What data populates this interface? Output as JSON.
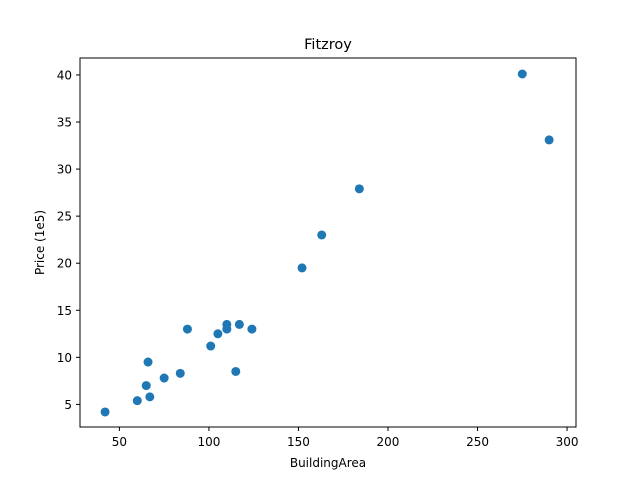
{
  "chart_data": {
    "type": "scatter",
    "title": "Fitzroy",
    "xlabel": "BuildingArea",
    "ylabel": "Price (1e5)",
    "xlim": [
      28,
      305
    ],
    "ylim": [
      2.6,
      41.8
    ],
    "xticks": [
      50,
      100,
      150,
      200,
      250,
      300
    ],
    "yticks": [
      5,
      10,
      15,
      20,
      25,
      30,
      35,
      40
    ],
    "grid": false,
    "marker_color": "#1f77b4",
    "points": [
      {
        "x": 42,
        "y": 4.2
      },
      {
        "x": 60,
        "y": 5.4
      },
      {
        "x": 65,
        "y": 7.0
      },
      {
        "x": 66,
        "y": 9.5
      },
      {
        "x": 67,
        "y": 5.8
      },
      {
        "x": 75,
        "y": 7.8
      },
      {
        "x": 84,
        "y": 8.3
      },
      {
        "x": 88,
        "y": 13.0
      },
      {
        "x": 101,
        "y": 11.2
      },
      {
        "x": 105,
        "y": 12.5
      },
      {
        "x": 110,
        "y": 13.0
      },
      {
        "x": 110,
        "y": 13.5
      },
      {
        "x": 115,
        "y": 8.5
      },
      {
        "x": 117,
        "y": 13.5
      },
      {
        "x": 124,
        "y": 13.0
      },
      {
        "x": 152,
        "y": 19.5
      },
      {
        "x": 163,
        "y": 23.0
      },
      {
        "x": 184,
        "y": 27.9
      },
      {
        "x": 275,
        "y": 40.1
      },
      {
        "x": 290,
        "y": 33.1
      }
    ]
  }
}
